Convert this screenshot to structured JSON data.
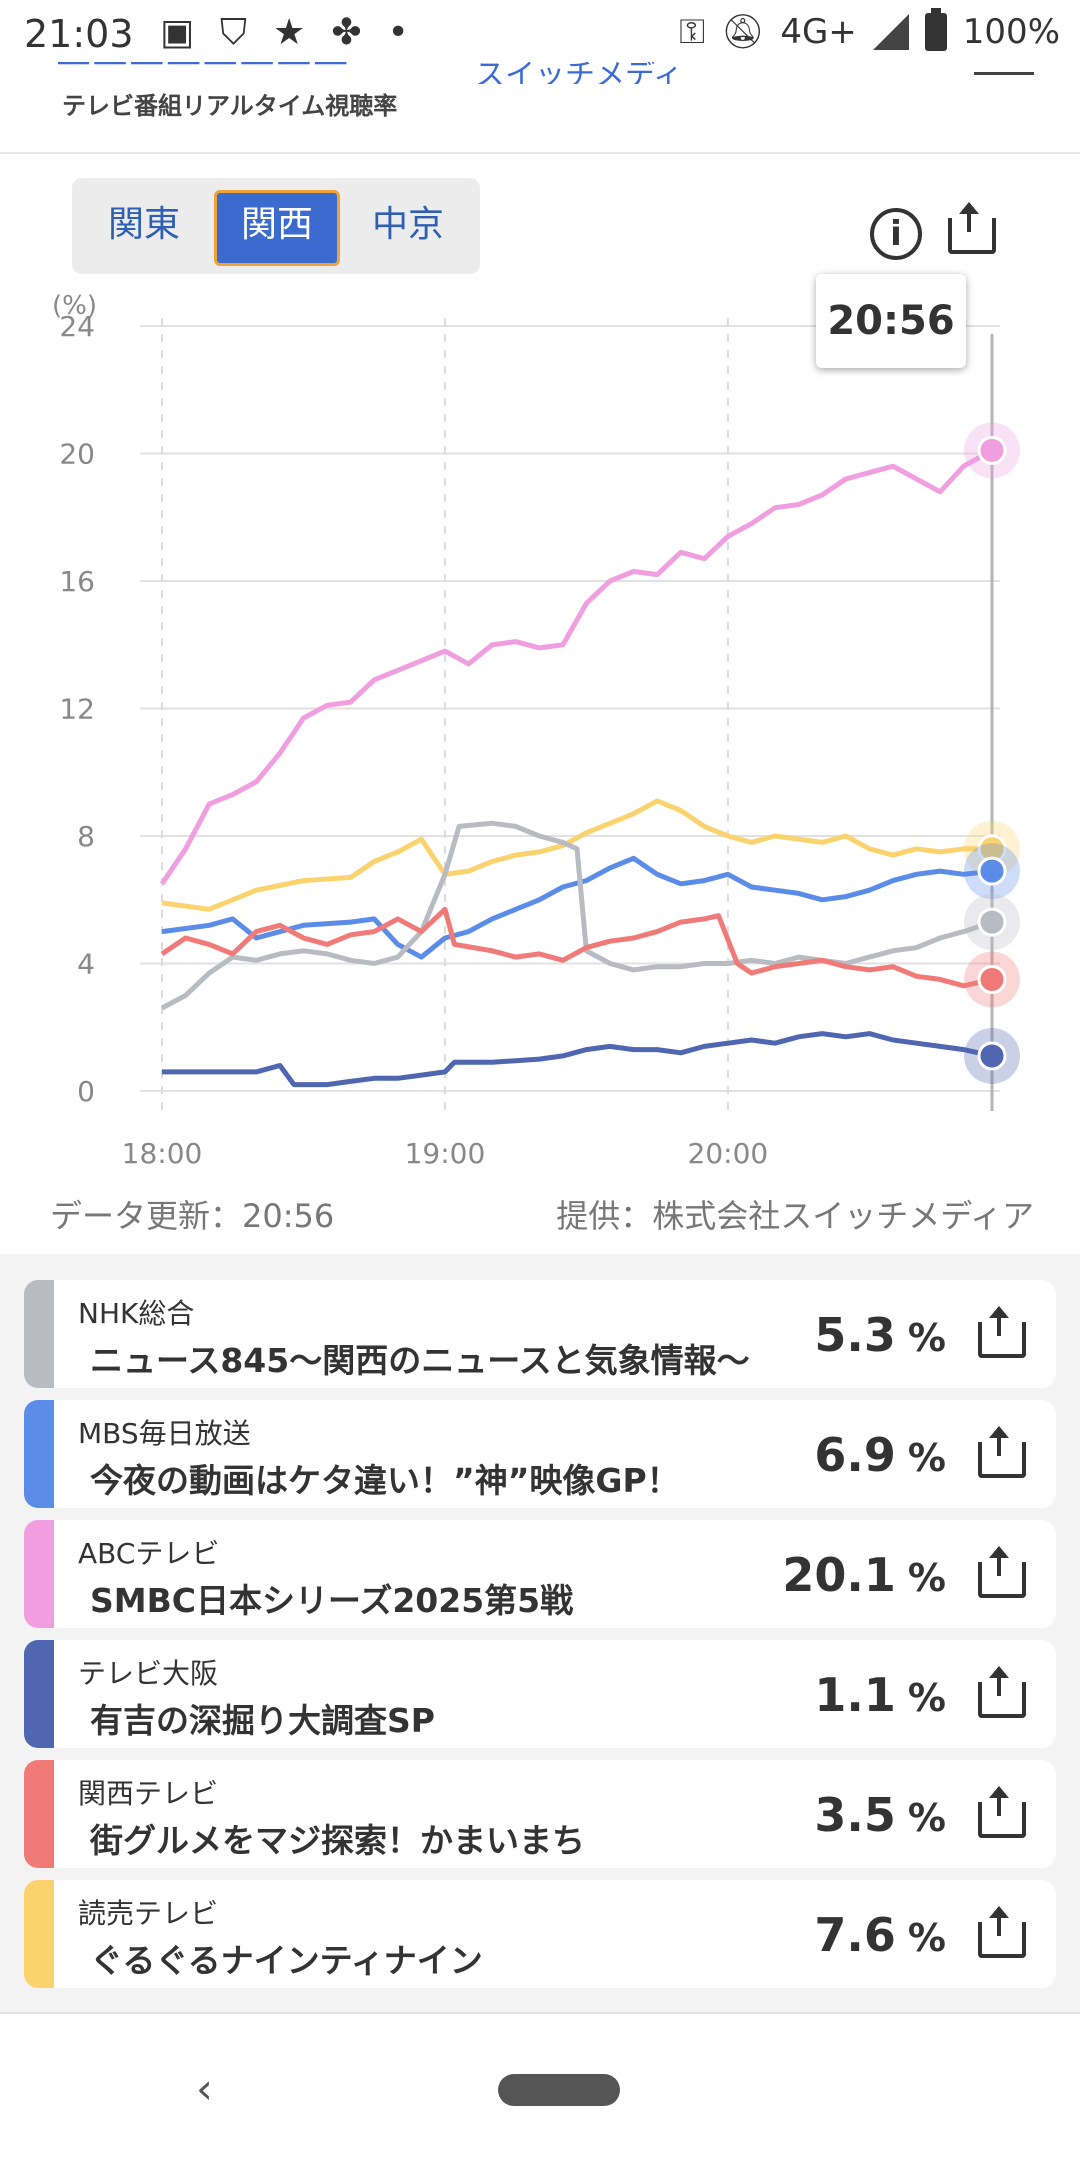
{
  "status_bar": {
    "time": "21:03",
    "network": "4G+",
    "battery": "100%",
    "left_icons": [
      "image-icon",
      "shield-check-icon",
      "star-icon",
      "fan-icon",
      "dot-icon"
    ],
    "right_icons": [
      "key-icon",
      "bell-off-icon",
      "signal-icon",
      "battery-icon"
    ]
  },
  "header": {
    "subtitle": "テレビ番組リアルタイム視聴率",
    "brand_right": "スイッチメディア"
  },
  "region_tabs": {
    "items": [
      {
        "label": "関東"
      },
      {
        "label": "関西"
      },
      {
        "label": "中京"
      }
    ],
    "active_index": 1
  },
  "tooltip_time": "20:56",
  "chart_data": {
    "type": "line",
    "ylabel": "(%)",
    "ylim": [
      0,
      24
    ],
    "yticks": [
      0,
      4,
      8,
      12,
      16,
      20,
      24
    ],
    "xticks": [
      "18:00",
      "19:00",
      "20:00"
    ],
    "xlim_minutes": [
      0,
      176
    ],
    "cursor_time": "20:56",
    "grid": true,
    "series": [
      {
        "name": "ABCテレビ",
        "color": "#f09ee0",
        "last": 20.1,
        "points": [
          [
            0,
            6.5
          ],
          [
            5,
            7.6
          ],
          [
            10,
            9.0
          ],
          [
            15,
            9.3
          ],
          [
            20,
            9.7
          ],
          [
            25,
            10.6
          ],
          [
            30,
            11.7
          ],
          [
            35,
            12.1
          ],
          [
            40,
            12.2
          ],
          [
            45,
            12.9
          ],
          [
            50,
            13.2
          ],
          [
            55,
            13.5
          ],
          [
            60,
            13.8
          ],
          [
            65,
            13.4
          ],
          [
            70,
            14.0
          ],
          [
            75,
            14.1
          ],
          [
            80,
            13.9
          ],
          [
            85,
            14.0
          ],
          [
            90,
            15.3
          ],
          [
            95,
            16.0
          ],
          [
            100,
            16.3
          ],
          [
            105,
            16.2
          ],
          [
            110,
            16.9
          ],
          [
            115,
            16.7
          ],
          [
            120,
            17.4
          ],
          [
            125,
            17.8
          ],
          [
            130,
            18.3
          ],
          [
            135,
            18.4
          ],
          [
            140,
            18.7
          ],
          [
            145,
            19.2
          ],
          [
            150,
            19.4
          ],
          [
            155,
            19.6
          ],
          [
            160,
            19.2
          ],
          [
            165,
            18.8
          ],
          [
            170,
            19.6
          ],
          [
            176,
            20.1
          ]
        ]
      },
      {
        "name": "読売テレビ",
        "color": "#fbd36e",
        "last": 7.6,
        "points": [
          [
            0,
            5.9
          ],
          [
            10,
            5.7
          ],
          [
            20,
            6.3
          ],
          [
            30,
            6.6
          ],
          [
            40,
            6.7
          ],
          [
            45,
            7.2
          ],
          [
            50,
            7.5
          ],
          [
            55,
            7.9
          ],
          [
            60,
            6.8
          ],
          [
            65,
            6.9
          ],
          [
            70,
            7.2
          ],
          [
            75,
            7.4
          ],
          [
            80,
            7.5
          ],
          [
            85,
            7.7
          ],
          [
            90,
            8.1
          ],
          [
            95,
            8.4
          ],
          [
            100,
            8.7
          ],
          [
            105,
            9.1
          ],
          [
            110,
            8.8
          ],
          [
            115,
            8.3
          ],
          [
            120,
            8.0
          ],
          [
            125,
            7.8
          ],
          [
            130,
            8.0
          ],
          [
            135,
            7.9
          ],
          [
            140,
            7.8
          ],
          [
            145,
            8.0
          ],
          [
            150,
            7.6
          ],
          [
            155,
            7.4
          ],
          [
            160,
            7.6
          ],
          [
            165,
            7.5
          ],
          [
            170,
            7.6
          ],
          [
            176,
            7.6
          ]
        ]
      },
      {
        "name": "MBS毎日放送",
        "color": "#5b8ce8",
        "last": 6.9,
        "points": [
          [
            0,
            5.0
          ],
          [
            10,
            5.2
          ],
          [
            15,
            5.4
          ],
          [
            20,
            4.8
          ],
          [
            30,
            5.2
          ],
          [
            40,
            5.3
          ],
          [
            45,
            5.4
          ],
          [
            50,
            4.6
          ],
          [
            55,
            4.2
          ],
          [
            60,
            4.8
          ],
          [
            65,
            5.0
          ],
          [
            70,
            5.4
          ],
          [
            75,
            5.7
          ],
          [
            80,
            6.0
          ],
          [
            85,
            6.4
          ],
          [
            90,
            6.6
          ],
          [
            95,
            7.0
          ],
          [
            100,
            7.3
          ],
          [
            105,
            6.8
          ],
          [
            110,
            6.5
          ],
          [
            115,
            6.6
          ],
          [
            120,
            6.8
          ],
          [
            125,
            6.4
          ],
          [
            130,
            6.3
          ],
          [
            135,
            6.2
          ],
          [
            140,
            6.0
          ],
          [
            145,
            6.1
          ],
          [
            150,
            6.3
          ],
          [
            155,
            6.6
          ],
          [
            160,
            6.8
          ],
          [
            165,
            6.9
          ],
          [
            170,
            6.8
          ],
          [
            176,
            6.9
          ]
        ]
      },
      {
        "name": "NHK総合",
        "color": "#b8bbc2",
        "last": 5.3,
        "points": [
          [
            0,
            2.6
          ],
          [
            5,
            3.0
          ],
          [
            10,
            3.7
          ],
          [
            15,
            4.2
          ],
          [
            20,
            4.1
          ],
          [
            25,
            4.3
          ],
          [
            30,
            4.4
          ],
          [
            35,
            4.3
          ],
          [
            40,
            4.1
          ],
          [
            45,
            4.0
          ],
          [
            50,
            4.2
          ],
          [
            55,
            5.0
          ],
          [
            60,
            6.8
          ],
          [
            63,
            8.3
          ],
          [
            70,
            8.4
          ],
          [
            75,
            8.3
          ],
          [
            80,
            8.0
          ],
          [
            85,
            7.8
          ],
          [
            88,
            7.6
          ],
          [
            90,
            4.4
          ],
          [
            95,
            4.0
          ],
          [
            100,
            3.8
          ],
          [
            105,
            3.9
          ],
          [
            110,
            3.9
          ],
          [
            115,
            4.0
          ],
          [
            120,
            4.0
          ],
          [
            125,
            4.1
          ],
          [
            130,
            4.0
          ],
          [
            135,
            4.2
          ],
          [
            140,
            4.1
          ],
          [
            145,
            4.0
          ],
          [
            150,
            4.2
          ],
          [
            155,
            4.4
          ],
          [
            160,
            4.5
          ],
          [
            165,
            4.8
          ],
          [
            170,
            5.0
          ],
          [
            176,
            5.3
          ]
        ]
      },
      {
        "name": "関西テレビ",
        "color": "#ef7a78",
        "last": 3.5,
        "points": [
          [
            0,
            4.3
          ],
          [
            5,
            4.8
          ],
          [
            10,
            4.6
          ],
          [
            15,
            4.3
          ],
          [
            20,
            5.0
          ],
          [
            25,
            5.2
          ],
          [
            30,
            4.8
          ],
          [
            35,
            4.6
          ],
          [
            40,
            4.9
          ],
          [
            45,
            5.0
          ],
          [
            50,
            5.4
          ],
          [
            55,
            5.0
          ],
          [
            60,
            5.7
          ],
          [
            62,
            4.6
          ],
          [
            70,
            4.4
          ],
          [
            75,
            4.2
          ],
          [
            80,
            4.3
          ],
          [
            85,
            4.1
          ],
          [
            90,
            4.5
          ],
          [
            95,
            4.7
          ],
          [
            100,
            4.8
          ],
          [
            105,
            5.0
          ],
          [
            110,
            5.3
          ],
          [
            115,
            5.4
          ],
          [
            118,
            5.5
          ],
          [
            122,
            4.0
          ],
          [
            125,
            3.7
          ],
          [
            130,
            3.9
          ],
          [
            135,
            4.0
          ],
          [
            140,
            4.1
          ],
          [
            145,
            3.9
          ],
          [
            150,
            3.8
          ],
          [
            155,
            3.9
          ],
          [
            160,
            3.6
          ],
          [
            165,
            3.5
          ],
          [
            170,
            3.3
          ],
          [
            176,
            3.5
          ]
        ]
      },
      {
        "name": "テレビ大阪",
        "color": "#4f66b0",
        "last": 1.1,
        "points": [
          [
            0,
            0.6
          ],
          [
            10,
            0.6
          ],
          [
            20,
            0.6
          ],
          [
            25,
            0.8
          ],
          [
            28,
            0.2
          ],
          [
            35,
            0.2
          ],
          [
            40,
            0.3
          ],
          [
            45,
            0.4
          ],
          [
            50,
            0.4
          ],
          [
            55,
            0.5
          ],
          [
            60,
            0.6
          ],
          [
            62,
            0.9
          ],
          [
            70,
            0.9
          ],
          [
            80,
            1.0
          ],
          [
            85,
            1.1
          ],
          [
            90,
            1.3
          ],
          [
            95,
            1.4
          ],
          [
            100,
            1.3
          ],
          [
            105,
            1.3
          ],
          [
            110,
            1.2
          ],
          [
            115,
            1.4
          ],
          [
            120,
            1.5
          ],
          [
            125,
            1.6
          ],
          [
            130,
            1.5
          ],
          [
            135,
            1.7
          ],
          [
            140,
            1.8
          ],
          [
            145,
            1.7
          ],
          [
            150,
            1.8
          ],
          [
            155,
            1.6
          ],
          [
            160,
            1.5
          ],
          [
            165,
            1.4
          ],
          [
            170,
            1.3
          ],
          [
            176,
            1.1
          ]
        ]
      }
    ]
  },
  "chart_footer": {
    "updated": "データ更新：20:56",
    "provider": "提供：株式会社スイッチメディア"
  },
  "programs": [
    {
      "channel": "NHK総合",
      "title": "ニュース845〜関西のニュースと気象情報〜",
      "rating": "5.3",
      "unit": "%",
      "color": "#b8bbc2"
    },
    {
      "channel": "MBS毎日放送",
      "title": "今夜の動画はケタ違い！”神”映像GP！",
      "rating": "6.9",
      "unit": "%",
      "color": "#5b8ce8"
    },
    {
      "channel": "ABCテレビ",
      "title": "SMBC日本シリーズ2025第5戦",
      "rating": "20.1",
      "unit": "%",
      "color": "#f09ee0"
    },
    {
      "channel": "テレビ大阪",
      "title": "有吉の深掘り大調査SP",
      "rating": "1.1",
      "unit": "%",
      "color": "#4f66b0"
    },
    {
      "channel": "関西テレビ",
      "title": "街グルメをマジ探索！かまいまち",
      "rating": "3.5",
      "unit": "%",
      "color": "#ef7a78"
    },
    {
      "channel": "読売テレビ",
      "title": "ぐるぐるナインティナイン",
      "rating": "7.6",
      "unit": "%",
      "color": "#fbd36e"
    }
  ],
  "nav": {
    "back_glyph": "‹"
  }
}
